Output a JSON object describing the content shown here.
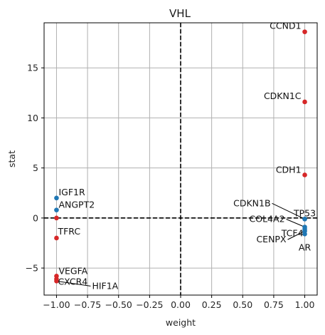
{
  "chart_data": {
    "type": "scatter",
    "title": "VHL",
    "xlabel": "weight",
    "ylabel": "stat",
    "xlim": [
      -1.1,
      1.1
    ],
    "ylim": [
      -7.7,
      19.5
    ],
    "xticks": [
      -1.0,
      -0.75,
      -0.5,
      -0.25,
      0.0,
      0.25,
      0.5,
      0.75,
      1.0
    ],
    "xtick_labels": [
      "−1.00",
      "−0.75",
      "−0.50",
      "−0.25",
      "0.00",
      "0.25",
      "0.50",
      "0.75",
      "1.00"
    ],
    "yticks": [
      -5,
      0,
      5,
      10,
      15
    ],
    "ytick_labels": [
      "−5",
      "0",
      "5",
      "10",
      "15"
    ],
    "grid": true,
    "reference_lines": {
      "x": 0,
      "y": 0,
      "style": "dashed"
    },
    "colors": {
      "positive": "#d62728",
      "negative": "#1f77b4",
      "grid": "#b0b0b0",
      "axis": "#000000"
    },
    "points": [
      {
        "label": "CCND1",
        "x": 1.0,
        "y": 18.6,
        "color": "#d62728"
      },
      {
        "label": "CDKN1C",
        "x": 1.0,
        "y": 11.6,
        "color": "#d62728"
      },
      {
        "label": "CDH1",
        "x": 1.0,
        "y": 4.3,
        "color": "#d62728"
      },
      {
        "label": "CDKN1B",
        "x": 1.0,
        "y": -0.1,
        "color": "#1f77b4"
      },
      {
        "label": "TP53",
        "x": 1.0,
        "y": -0.1,
        "color": "#1f77b4"
      },
      {
        "label": "COL4A2",
        "x": 1.0,
        "y": -0.9,
        "color": "#1f77b4"
      },
      {
        "label": "TCF4",
        "x": 1.0,
        "y": -1.1,
        "color": "#1f77b4"
      },
      {
        "label": "CENPX",
        "x": 1.0,
        "y": -1.3,
        "color": "#1f77b4"
      },
      {
        "label": "AR",
        "x": 1.0,
        "y": -1.6,
        "color": "#1f77b4"
      },
      {
        "label": "IGF1R",
        "x": -1.0,
        "y": 2.0,
        "color": "#1f77b4"
      },
      {
        "label": "ANGPT2",
        "x": -1.0,
        "y": 0.8,
        "color": "#1f77b4"
      },
      {
        "label": "",
        "x": -1.0,
        "y": 0.0,
        "color": "#d62728"
      },
      {
        "label": "TFRC",
        "x": -1.0,
        "y": -2.0,
        "color": "#d62728"
      },
      {
        "label": "VEGFA",
        "x": -1.0,
        "y": -5.8,
        "color": "#d62728"
      },
      {
        "label": "CXCR4",
        "x": -1.0,
        "y": -6.1,
        "color": "#d62728"
      },
      {
        "label": "HIF1A",
        "x": -1.0,
        "y": -6.3,
        "color": "#d62728"
      }
    ]
  }
}
